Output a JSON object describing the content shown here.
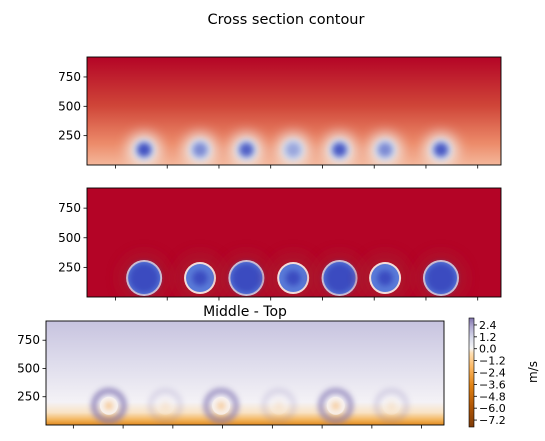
{
  "figure": {
    "title": "Cross section contour"
  },
  "chart_data": [
    {
      "type": "heatmap",
      "title": "",
      "colormap": "coolwarm",
      "ylim": [
        0,
        920
      ],
      "y_ticks": [
        250,
        500,
        750
      ],
      "y_tick_labels": [
        "250",
        "500",
        "750"
      ],
      "x_tick_count": 8,
      "x_tick_labels_shown": false,
      "field": "warm background, stronger toward the top, with 7 cool blobs near the bottom",
      "blobs": [
        {
          "x_frac": 0.138,
          "y": 130,
          "intensity": 0.95
        },
        {
          "x_frac": 0.273,
          "y": 130,
          "intensity": 0.55
        },
        {
          "x_frac": 0.385,
          "y": 130,
          "intensity": 0.85
        },
        {
          "x_frac": 0.498,
          "y": 130,
          "intensity": 0.35
        },
        {
          "x_frac": 0.61,
          "y": 130,
          "intensity": 0.9
        },
        {
          "x_frac": 0.72,
          "y": 130,
          "intensity": 0.55
        },
        {
          "x_frac": 0.855,
          "y": 130,
          "intensity": 0.9
        }
      ]
    },
    {
      "type": "heatmap",
      "title": "",
      "colormap": "coolwarm",
      "ylim": [
        0,
        920
      ],
      "y_ticks": [
        250,
        500,
        750
      ],
      "y_tick_labels": [
        "250",
        "500",
        "750"
      ],
      "x_tick_count": 8,
      "x_tick_labels_shown": false,
      "field": "saturated warm background with 7 saturated cool disks near the bottom",
      "blobs": [
        {
          "x_frac": 0.138,
          "y": 160,
          "intensity": 1.0
        },
        {
          "x_frac": 0.273,
          "y": 160,
          "intensity": 0.75
        },
        {
          "x_frac": 0.385,
          "y": 160,
          "intensity": 1.0
        },
        {
          "x_frac": 0.498,
          "y": 160,
          "intensity": 0.6
        },
        {
          "x_frac": 0.61,
          "y": 160,
          "intensity": 1.0
        },
        {
          "x_frac": 0.72,
          "y": 160,
          "intensity": 0.75
        },
        {
          "x_frac": 0.855,
          "y": 160,
          "intensity": 1.0
        }
      ]
    },
    {
      "type": "heatmap",
      "title": "Middle - Top",
      "colormap": "PuOr",
      "ylim": [
        0,
        920
      ],
      "y_ticks": [
        250,
        500,
        750
      ],
      "y_tick_labels": [
        "250",
        "500",
        "750"
      ],
      "x_tick_count": 8,
      "x_tick_labels_shown": false,
      "field": "pale lavender above, near-white in the middle, orange at the bottom, with purple rings",
      "rings": [
        {
          "x_frac": 0.158,
          "y": 170,
          "intensity": 1.0
        },
        {
          "x_frac": 0.3,
          "y": 170,
          "intensity": 0.25
        },
        {
          "x_frac": 0.44,
          "y": 170,
          "intensity": 0.9
        },
        {
          "x_frac": 0.585,
          "y": 170,
          "intensity": 0.25
        },
        {
          "x_frac": 0.728,
          "y": 170,
          "intensity": 0.9
        },
        {
          "x_frac": 0.868,
          "y": 170,
          "intensity": 0.3
        },
        {
          "x_frac": 0.005,
          "y": 170,
          "intensity": 0.0
        }
      ],
      "colorbar": {
        "label": "m/s",
        "vmin": -7.9,
        "vmax": 3.1,
        "ticks": [
          2.4,
          1.2,
          0.0,
          -1.2,
          -2.4,
          -3.6,
          -4.8,
          -6.0,
          -7.2
        ],
        "tick_labels": [
          "2.4",
          "1.2",
          "0.0",
          "−1.2",
          "−2.4",
          "−3.6",
          "−4.8",
          "−6.0",
          "−7.2"
        ]
      }
    }
  ]
}
